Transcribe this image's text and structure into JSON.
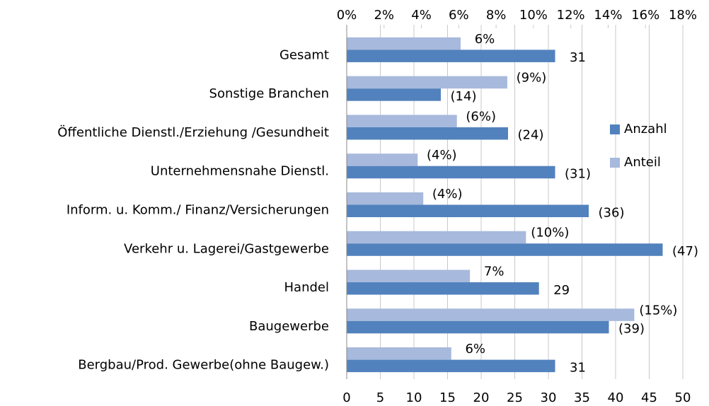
{
  "chart_data": {
    "type": "bar",
    "orientation": "horizontal",
    "categories": [
      "Gesamt",
      "Sonstige Branchen",
      "Öffentliche Dienstl./Erziehung /Gesundheit",
      "Unternehmensnahe Dienstl.",
      "Inform. u. Komm./ Finanz/Versicherungen",
      "Verkehr u. Lagerei/Gastgewerbe",
      "Handel",
      "Baugewerbe",
      "Bergbau/Prod. Gewerbe(ohne Baugew.)"
    ],
    "series": [
      {
        "name": "Anteil",
        "color": "#a7b9dc",
        "axis": "x2",
        "values": [
          6.1,
          8.6,
          5.9,
          3.8,
          4.1,
          9.6,
          6.6,
          15.4,
          5.6
        ],
        "value_labels": [
          "6%",
          "(9%)",
          "(6%)",
          "(4%)",
          "(4%)",
          "(10%)",
          "7%",
          "(15%)",
          "6%"
        ]
      },
      {
        "name": "Anzahl",
        "color": "#5282bd",
        "values": [
          31,
          14,
          24,
          31,
          36,
          47,
          28.6,
          39,
          31
        ],
        "value_labels": [
          "31",
          "(14)",
          "(24)",
          "(31)",
          "(36)",
          "(47)",
          "29",
          "(39)",
          "31"
        ]
      }
    ],
    "xlim": [
      0,
      50
    ],
    "xticks": [
      0,
      5,
      10,
      15,
      20,
      25,
      30,
      35,
      40,
      45,
      50
    ],
    "x2lim": [
      0,
      18
    ],
    "x2ticks": [
      {
        "value": 0,
        "label": "0%"
      },
      {
        "value": 2,
        "label": "2%"
      },
      {
        "value": 4,
        "label": "4%"
      },
      {
        "value": 6,
        "label": "6%"
      },
      {
        "value": 8,
        "label": "8%"
      },
      {
        "value": 10,
        "label": "10%"
      },
      {
        "value": 12,
        "label": "12%"
      },
      {
        "value": 14,
        "label": "14%"
      },
      {
        "value": 16,
        "label": "16%"
      },
      {
        "value": 18,
        "label": "18%"
      }
    ],
    "grid": true,
    "legend": "right"
  }
}
